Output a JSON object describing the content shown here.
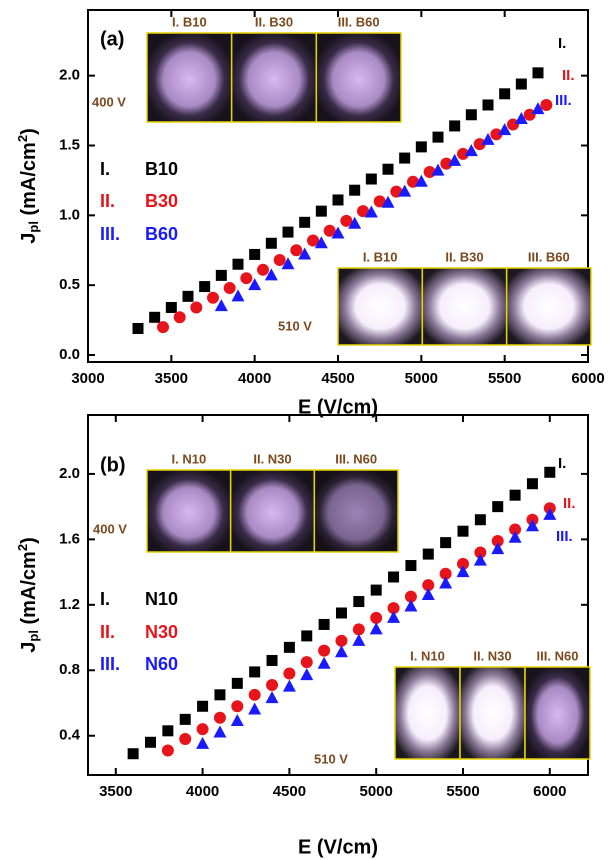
{
  "chart_data": [
    {
      "type": "scatter",
      "panel_label": "(a)",
      "x_label": "E (V/cm)",
      "y_label": [
        "J",
        "pl",
        " (mA/cm",
        "2",
        ")"
      ],
      "xlim": [
        3000,
        6000
      ],
      "xticks": [
        3000,
        3500,
        4000,
        4500,
        5000,
        5500,
        6000
      ],
      "ylim": [
        -0.05,
        2.47
      ],
      "yticks": [
        {
          "value": 0,
          "label": "0.0"
        },
        0.5,
        {
          "value": 1,
          "label": "1.0"
        },
        1.5,
        {
          "value": 2,
          "label": "2.0"
        }
      ],
      "series": [
        {
          "name": "B10",
          "roman": "I.",
          "color": "#000000",
          "marker": "square",
          "x": [
            3300,
            3400,
            3500,
            3600,
            3700,
            3800,
            3900,
            4000,
            4100,
            4200,
            4300,
            4400,
            4500,
            4600,
            4700,
            4800,
            4900,
            5000,
            5100,
            5200,
            5300,
            5400,
            5500,
            5600,
            5700
          ],
          "values": [
            0.19,
            0.27,
            0.34,
            0.42,
            0.49,
            0.57,
            0.65,
            0.72,
            0.8,
            0.88,
            0.95,
            1.03,
            1.11,
            1.18,
            1.26,
            1.33,
            1.41,
            1.49,
            1.56,
            1.64,
            1.72,
            1.79,
            1.87,
            1.94,
            2.02
          ]
        },
        {
          "name": "B30",
          "roman": "II.",
          "color": "#e8141b",
          "marker": "circle",
          "x": [
            3450,
            3550,
            3650,
            3750,
            3850,
            3950,
            4050,
            4150,
            4250,
            4350,
            4450,
            4550,
            4650,
            4750,
            4850,
            4950,
            5050,
            5150,
            5250,
            5350,
            5450,
            5550,
            5650,
            5750
          ],
          "values": [
            0.2,
            0.27,
            0.34,
            0.41,
            0.48,
            0.55,
            0.61,
            0.68,
            0.75,
            0.82,
            0.89,
            0.96,
            1.03,
            1.1,
            1.17,
            1.24,
            1.31,
            1.37,
            1.44,
            1.51,
            1.58,
            1.65,
            1.72,
            1.79
          ]
        },
        {
          "name": "B60",
          "roman": "III.",
          "color": "#1a1aff",
          "marker": "triangle",
          "x": [
            3800,
            3900,
            4000,
            4100,
            4200,
            4300,
            4400,
            4500,
            4600,
            4700,
            4800,
            4900,
            5000,
            5100,
            5200,
            5300,
            5400,
            5500,
            5600,
            5700
          ],
          "values": [
            0.35,
            0.42,
            0.5,
            0.57,
            0.65,
            0.72,
            0.8,
            0.87,
            0.94,
            1.02,
            1.09,
            1.17,
            1.24,
            1.32,
            1.39,
            1.46,
            1.54,
            1.61,
            1.69,
            1.76
          ]
        }
      ],
      "insets": [
        {
          "voltage": "400 V",
          "labels": [
            "I. B10",
            "II. B30",
            "III. B60"
          ]
        },
        {
          "voltage": "510 V",
          "labels": [
            "I. B10",
            "II. B30",
            "III. B60"
          ]
        }
      ]
    },
    {
      "type": "scatter",
      "panel_label": "(b)",
      "x_label": "E (V/cm)",
      "y_label": [
        "J",
        "pl",
        " (mA/cm",
        "2",
        ")"
      ],
      "xlim": [
        3340,
        6220
      ],
      "xticks": [
        3500,
        4000,
        4500,
        5000,
        5500,
        6000
      ],
      "ylim": [
        0.16,
        2.36
      ],
      "yticks": [
        0.4,
        0.8,
        1.2,
        1.6,
        {
          "value": 2,
          "label": "2.0"
        }
      ],
      "series": [
        {
          "name": "N10",
          "roman": "I.",
          "color": "#000000",
          "marker": "square",
          "x": [
            3600,
            3700,
            3800,
            3900,
            4000,
            4100,
            4200,
            4300,
            4400,
            4500,
            4600,
            4700,
            4800,
            4900,
            5000,
            5100,
            5200,
            5300,
            5400,
            5500,
            5600,
            5700,
            5800,
            5900,
            6000
          ],
          "values": [
            0.29,
            0.36,
            0.43,
            0.5,
            0.58,
            0.65,
            0.72,
            0.79,
            0.86,
            0.94,
            1.01,
            1.08,
            1.15,
            1.22,
            1.29,
            1.37,
            1.44,
            1.51,
            1.58,
            1.65,
            1.72,
            1.8,
            1.87,
            1.94,
            2.01
          ]
        },
        {
          "name": "N30",
          "roman": "II.",
          "color": "#e8141b",
          "marker": "circle",
          "x": [
            3800,
            3900,
            4000,
            4100,
            4200,
            4300,
            4400,
            4500,
            4600,
            4700,
            4800,
            4900,
            5000,
            5100,
            5200,
            5300,
            5400,
            5500,
            5600,
            5700,
            5800,
            5900,
            6000
          ],
          "values": [
            0.31,
            0.38,
            0.44,
            0.51,
            0.58,
            0.65,
            0.71,
            0.78,
            0.85,
            0.92,
            0.98,
            1.05,
            1.12,
            1.18,
            1.25,
            1.32,
            1.39,
            1.45,
            1.52,
            1.59,
            1.66,
            1.72,
            1.79
          ]
        },
        {
          "name": "N60",
          "roman": "III.",
          "color": "#1a1aff",
          "marker": "triangle",
          "x": [
            4000,
            4100,
            4200,
            4300,
            4400,
            4500,
            4600,
            4700,
            4800,
            4900,
            5000,
            5100,
            5200,
            5300,
            5400,
            5500,
            5600,
            5700,
            5800,
            5900,
            6000
          ],
          "values": [
            0.35,
            0.42,
            0.49,
            0.56,
            0.63,
            0.7,
            0.77,
            0.84,
            0.91,
            0.98,
            1.05,
            1.12,
            1.19,
            1.26,
            1.33,
            1.4,
            1.47,
            1.54,
            1.61,
            1.68,
            1.75
          ]
        }
      ],
      "insets": [
        {
          "voltage": "400 V",
          "labels": [
            "I. N10",
            "II. N30",
            "III. N60"
          ]
        },
        {
          "voltage": "510 V",
          "labels": [
            "I. N10",
            "II. N30",
            "III. N60"
          ]
        }
      ]
    }
  ]
}
